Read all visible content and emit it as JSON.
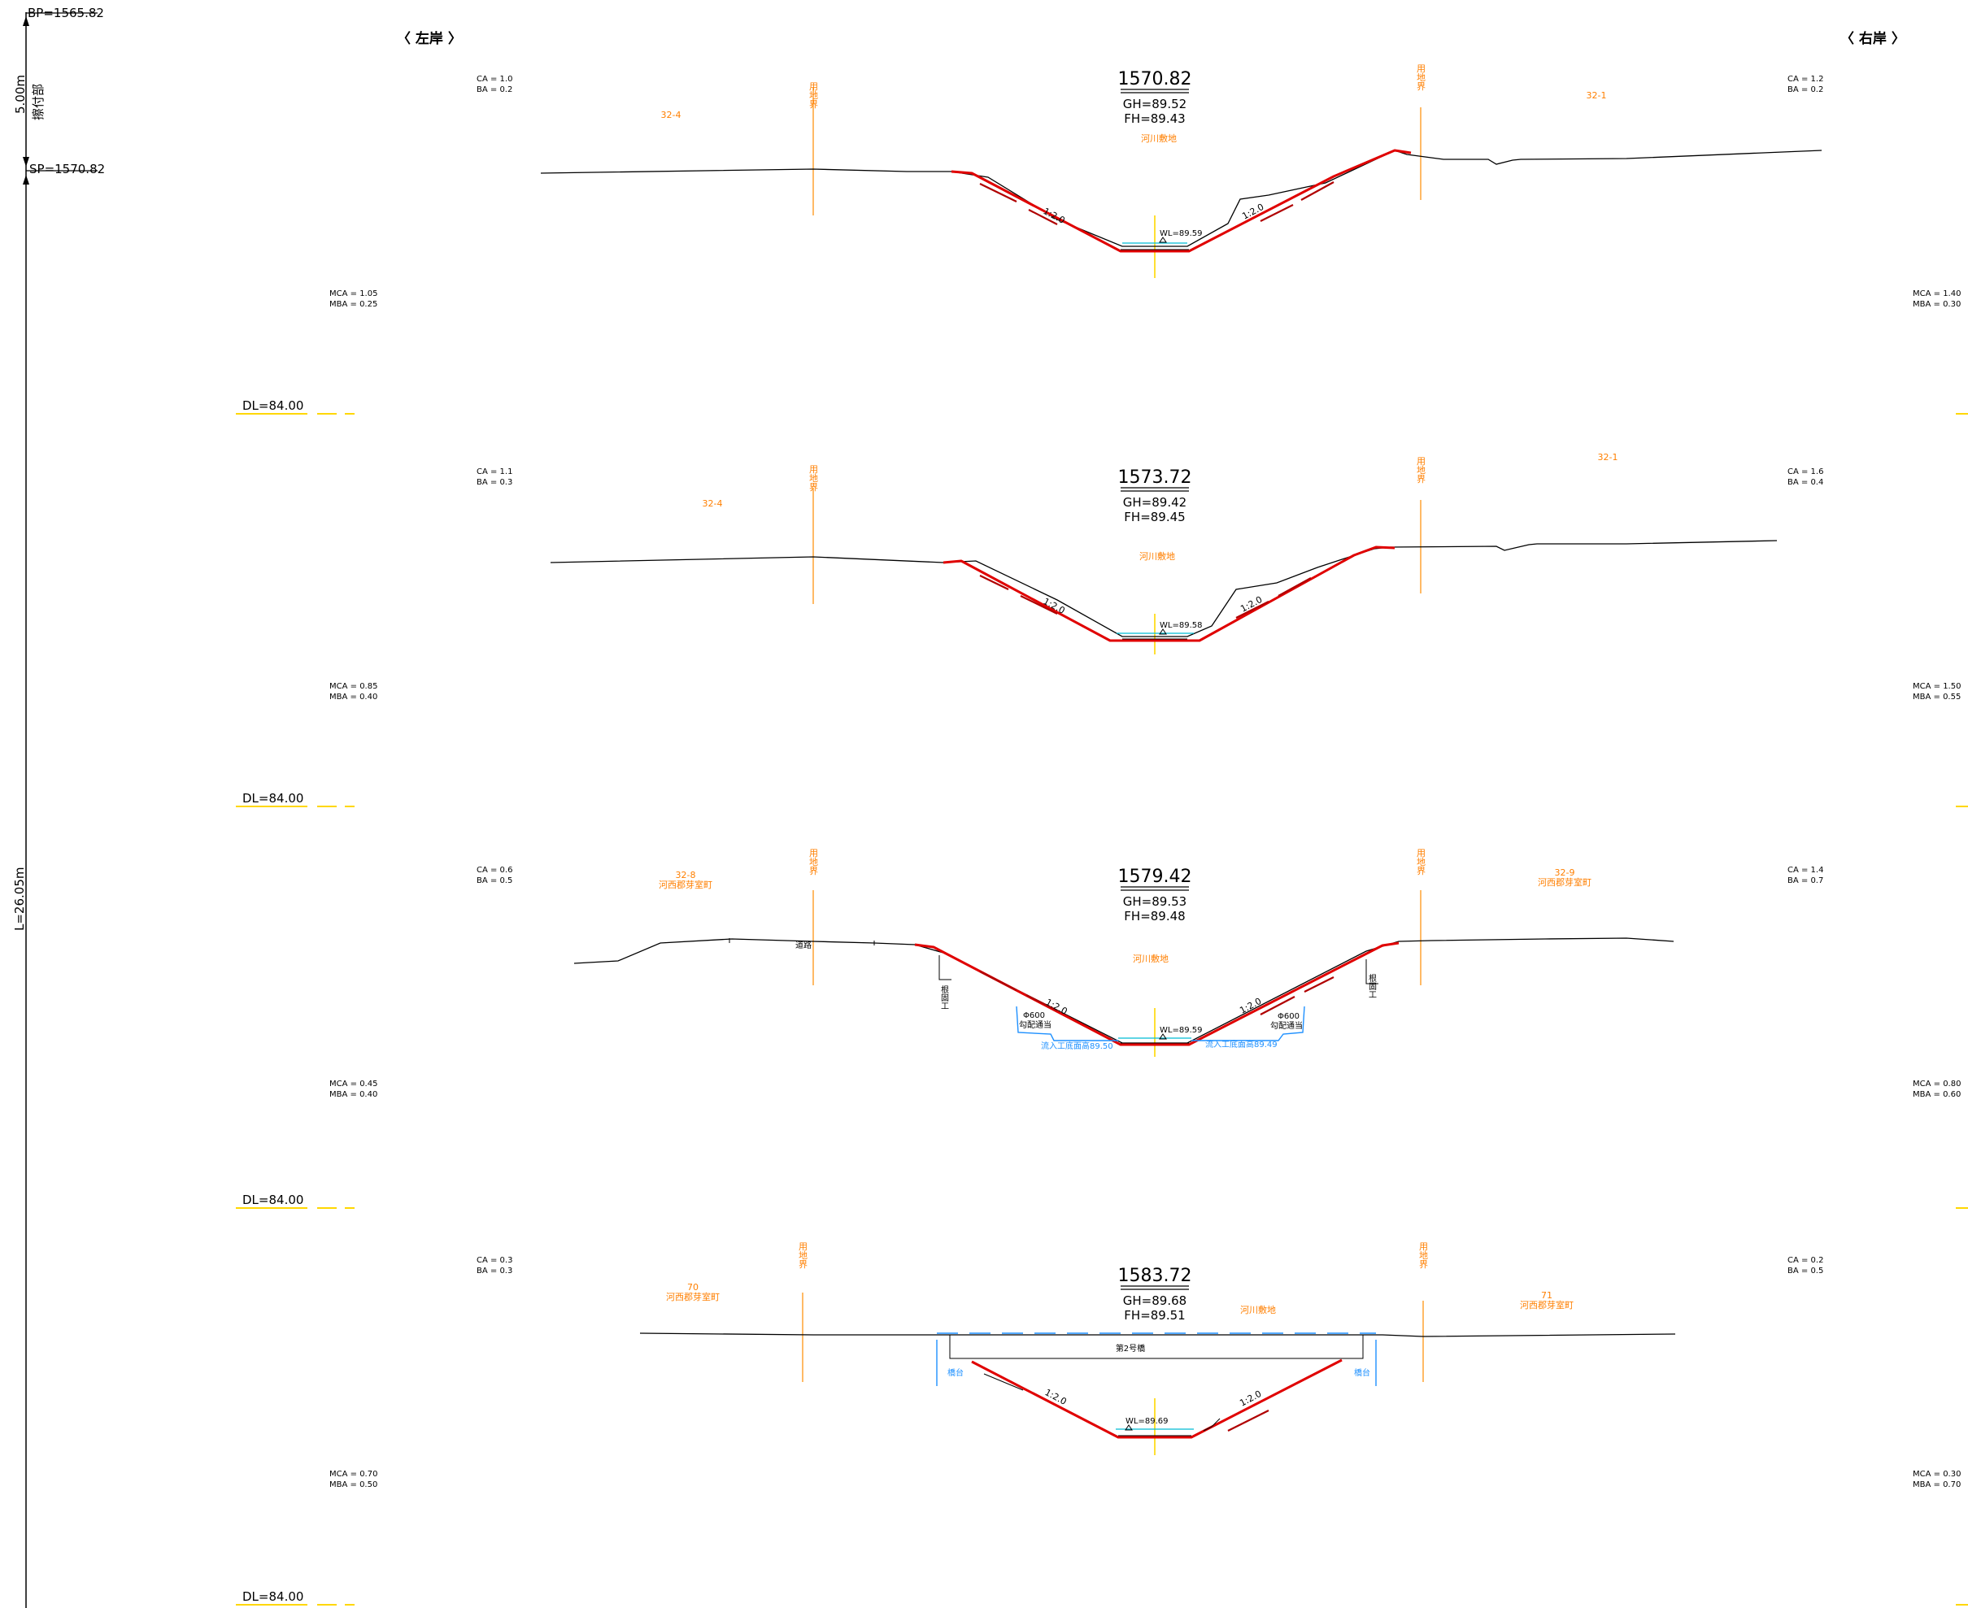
{
  "header": {
    "left_bank": "〈 左岸 〉",
    "right_bank": "〈 右岸 〉"
  },
  "axis": {
    "bp": "BP=1565.82",
    "sp": "SP=1570.82",
    "joint_length": "5.00m",
    "joint_label": "擦付部",
    "total_length": "L=26.05m"
  },
  "sections": [
    {
      "station": "1570.82",
      "gh": "GH=89.52",
      "fh": "FH=89.43",
      "area_label": "河川敷地",
      "wl": "WL=89.59",
      "dl": "DL=84.00",
      "left_ca": "CA = 1.0",
      "left_ba": "BA = 0.2",
      "right_ca": "CA = 1.2",
      "right_ba": "BA = 0.2",
      "left_mca": "MCA = 1.05",
      "left_mba": "MBA = 0.25",
      "right_mca": "MCA = 1.40",
      "right_mba": "MBA = 0.30",
      "left_parcel": "32-4",
      "left_owner": "",
      "right_parcel": "32-1",
      "right_owner": "",
      "boundary_label": "用地界",
      "slope_left": "1:2.0",
      "slope_right": "1:2.0"
    },
    {
      "station": "1573.72",
      "gh": "GH=89.42",
      "fh": "FH=89.45",
      "area_label": "河川敷地",
      "wl": "WL=89.58",
      "dl": "DL=84.00",
      "left_ca": "CA = 1.1",
      "left_ba": "BA = 0.3",
      "right_ca": "CA = 1.6",
      "right_ba": "BA = 0.4",
      "left_mca": "MCA = 0.85",
      "left_mba": "MBA = 0.40",
      "right_mca": "MCA = 1.50",
      "right_mba": "MBA = 0.55",
      "left_parcel": "32-4",
      "left_owner": "",
      "right_parcel": "32-1",
      "right_owner": "",
      "boundary_label": "用地界",
      "slope_left": "1:2.0",
      "slope_right": "1:2.0"
    },
    {
      "station": "1579.42",
      "gh": "GH=89.53",
      "fh": "FH=89.48",
      "area_label": "河川敷地",
      "wl": "WL=89.59",
      "dl": "DL=84.00",
      "left_ca": "CA = 0.6",
      "left_ba": "BA = 0.5",
      "right_ca": "CA = 1.4",
      "right_ba": "BA = 0.7",
      "left_mca": "MCA = 0.45",
      "left_mba": "MBA = 0.40",
      "right_mca": "MCA = 0.80",
      "right_mba": "MBA = 0.60",
      "left_parcel": "32-8",
      "left_owner": "河西郡芽室町",
      "right_parcel": "32-9",
      "right_owner": "河西郡芽室町",
      "boundary_label": "用地界",
      "slope_left": "1:2.0",
      "slope_right": "1:2.0",
      "road_label": "道路",
      "guard_label": "根固工",
      "pipe_size": "Φ600",
      "pipe_label": "勾配通当",
      "inlet_left": "流入工底面高89.50",
      "inlet_right": "流入工底面高89.49"
    },
    {
      "station": "1583.72",
      "gh": "GH=89.68",
      "fh": "FH=89.51",
      "area_label": "河川敷地",
      "wl": "WL=89.69",
      "dl": "DL=84.00",
      "left_ca": "CA = 0.3",
      "left_ba": "BA = 0.3",
      "right_ca": "CA = 0.2",
      "right_ba": "BA = 0.5",
      "left_mca": "MCA = 0.70",
      "left_mba": "MBA = 0.50",
      "right_mca": "MCA = 0.30",
      "right_mba": "MBA = 0.70",
      "left_parcel": "70",
      "left_owner": "河西郡芽室町",
      "right_parcel": "71",
      "right_owner": "河西郡芽室町",
      "boundary_label": "用地界",
      "slope_left": "1:2.0",
      "slope_right": "1:2.0",
      "bridge_label": "第2号橋",
      "abutment_label": "橋台"
    }
  ]
}
